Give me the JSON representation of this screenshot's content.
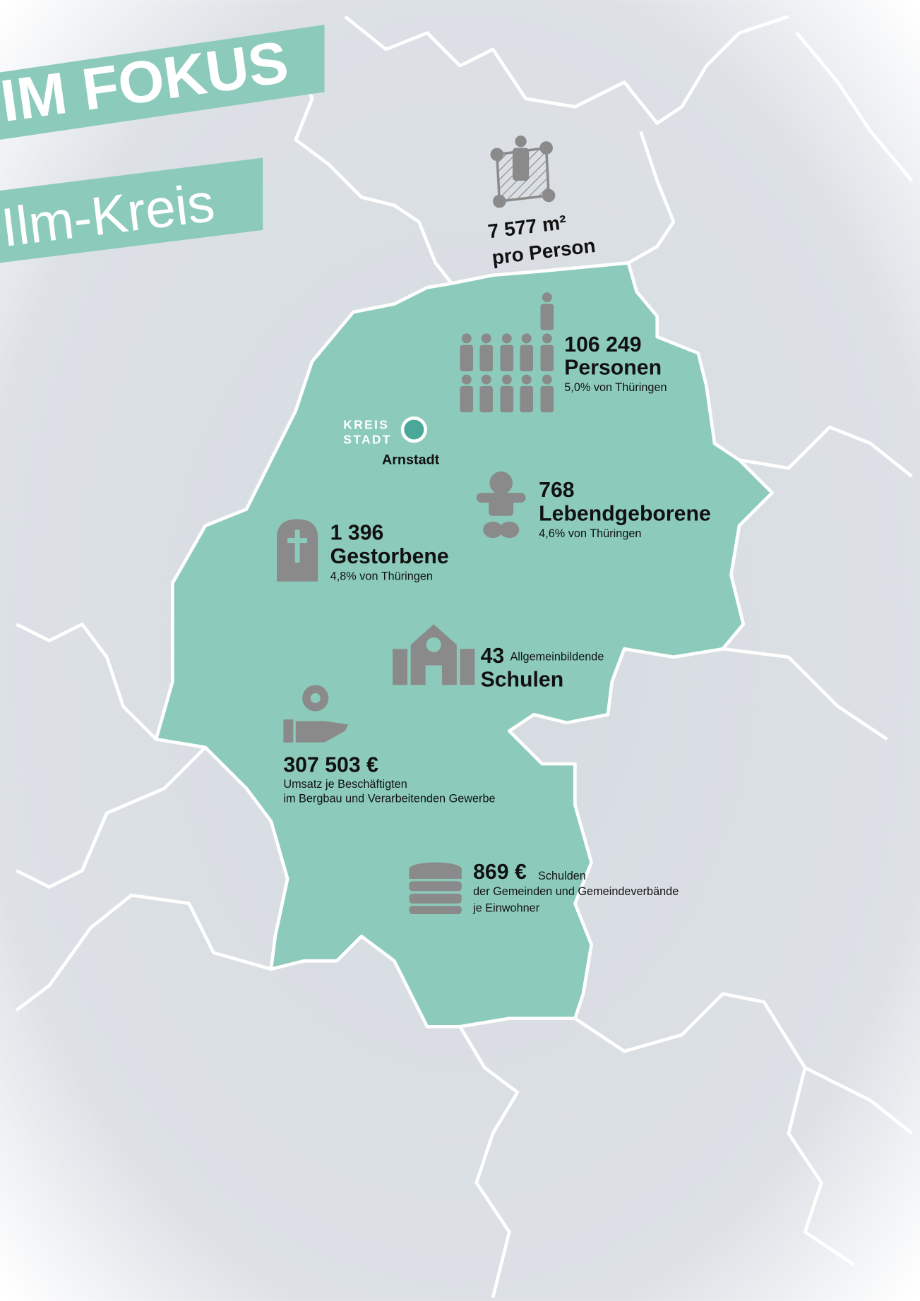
{
  "header": {
    "title": "IM FOKUS",
    "subtitle": "Ilm-Kreis"
  },
  "area": {
    "value": "7 577 m²",
    "label": "pro Person"
  },
  "population": {
    "value": "106 249",
    "label": "Personen",
    "share": "5,0% von Thüringen"
  },
  "capital": {
    "line1": "KREIS",
    "line2": "STADT",
    "name": "Arnstadt"
  },
  "births": {
    "value": "768",
    "label": "Lebendgeborene",
    "share": "4,6% von Thüringen"
  },
  "deaths": {
    "value": "1 396",
    "label": "Gestorbene",
    "share": "4,8% von Thüringen"
  },
  "schools": {
    "value": "43",
    "qualifier": "Allgemeinbildende",
    "label": "Schulen"
  },
  "revenue": {
    "value": "307 503 €",
    "line1": "Umsatz je Beschäftigten",
    "line2": "im Bergbau und Verarbeitenden Gewerbe"
  },
  "debt": {
    "value": "869 €",
    "label": "Schulden",
    "line1": "der Gemeinden und Gemeindeverbände",
    "line2": "je Einwohner"
  }
}
